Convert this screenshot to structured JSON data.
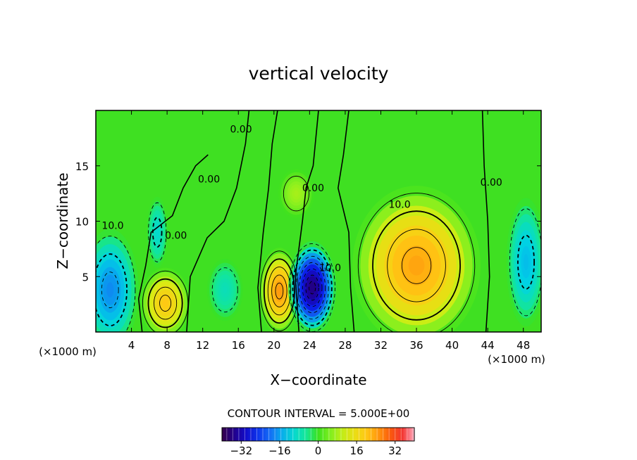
{
  "chart_data": {
    "type": "heatmap",
    "title": "vertical velocity",
    "xlabel": "X−coordinate",
    "ylabel": "Z−coordinate",
    "x_unit_left": "(×1000 m)",
    "x_unit_right": "(×1000 m)",
    "xlim": [
      0,
      50
    ],
    "ylim": [
      0,
      20
    ],
    "x_ticks": [
      4,
      8,
      12,
      16,
      20,
      24,
      28,
      32,
      36,
      40,
      44,
      48
    ],
    "x_tick_labels": [
      "4",
      "8",
      "12",
      "16",
      "20",
      "24",
      "28",
      "32",
      "36",
      "40",
      "44",
      "48"
    ],
    "y_ticks": [
      5,
      10,
      15
    ],
    "y_tick_labels": [
      "5",
      "10",
      "15"
    ],
    "contour_interval_text": "CONTOUR INTERVAL = 5.000E+00",
    "contour_interval": 5.0,
    "contour_labels": [
      {
        "text": "10.0",
        "x": 1.9,
        "z": 9.3
      },
      {
        "text": "0.00",
        "x": 9.0,
        "z": 8.4
      },
      {
        "text": "0.00",
        "x": 12.7,
        "z": 13.5
      },
      {
        "text": "0.00",
        "x": 16.3,
        "z": 18.0
      },
      {
        "text": "0.00",
        "x": 24.4,
        "z": 12.7
      },
      {
        "text": "10.0",
        "x": 26.3,
        "z": 5.5
      },
      {
        "text": "10.0",
        "x": 34.1,
        "z": 11.2
      },
      {
        "text": "0.00",
        "x": 44.4,
        "z": 13.2
      }
    ],
    "colorbar": {
      "min": -40,
      "max": 40,
      "tick_values": [
        -32,
        -16,
        0,
        16,
        32
      ],
      "tick_labels": [
        "−32",
        "−16",
        "0",
        "16",
        "32"
      ]
    },
    "field_features": [
      {
        "x": 24.2,
        "z": 3.8,
        "w": -36,
        "note": "strong downdraft"
      },
      {
        "x": 20.6,
        "z": 3.6,
        "w": 25,
        "note": "updraft"
      },
      {
        "x": 7.8,
        "z": 2.4,
        "w": 20,
        "note": "updraft"
      },
      {
        "x": 35.0,
        "z": 5.8,
        "w": 24,
        "note": "broad updraft"
      },
      {
        "x": 1.5,
        "z": 3.5,
        "w": -17,
        "note": "downdraft"
      },
      {
        "x": 48.5,
        "z": 6.0,
        "w": -14,
        "note": "downdraft"
      }
    ]
  }
}
